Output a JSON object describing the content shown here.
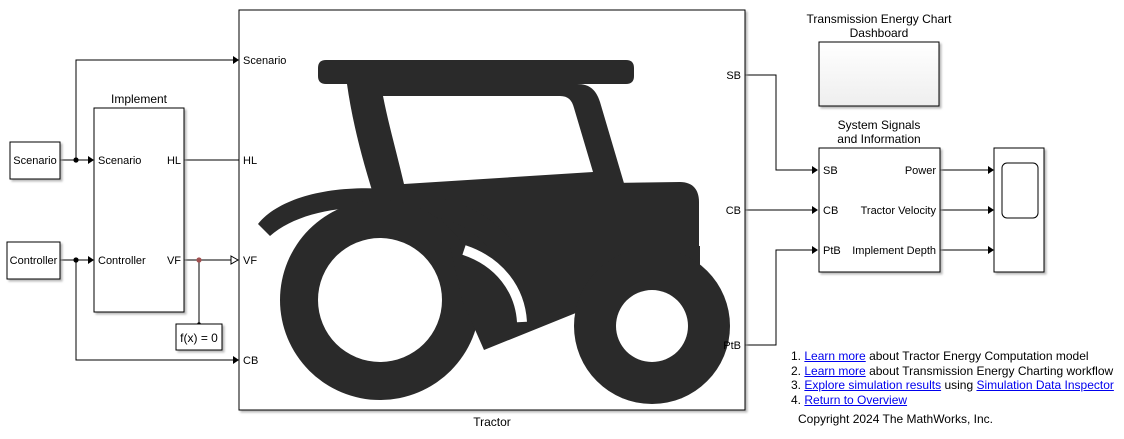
{
  "blocks": {
    "scenario_source": "Scenario",
    "controller_source": "Controller",
    "implement": {
      "title": "Implement",
      "in_scenario": "Scenario",
      "in_controller": "Controller",
      "out_hl": "HL",
      "out_vf": "VF"
    },
    "constraint": "f(x) = 0",
    "tractor": {
      "name": "Tractor",
      "in_scenario": "Scenario",
      "in_hl": "HL",
      "in_vf": "VF",
      "in_cb": "CB",
      "out_sb": "SB",
      "out_cb": "CB",
      "out_ptb": "PtB"
    },
    "dashboard": {
      "title_line1": "Transmission Energy Chart",
      "title_line2": "Dashboard"
    },
    "signals": {
      "title_line1": "System Signals",
      "title_line2": "and Information",
      "in_sb": "SB",
      "in_cb": "CB",
      "in_ptb": "PtB",
      "out_power": "Power",
      "out_velocity": "Tractor Velocity",
      "out_depth": "Implement Depth"
    }
  },
  "notes": {
    "item1": {
      "num": "1.",
      "link": "Learn more",
      "text": "about Tractor Energy Computation model"
    },
    "item2": {
      "num": "2.",
      "link": "Learn more",
      "text": "about Transmission Energy Charting workflow"
    },
    "item3": {
      "num": "3.",
      "link": "Explore simulation results",
      "mid": "using",
      "link2": "Simulation Data Inspector"
    },
    "item4": {
      "num": "4.",
      "link": "Return to Overview"
    }
  },
  "copyright": "Copyright 2024 The MathWorks, Inc.",
  "colors": {
    "tractor_icon": "#2a2a2a",
    "hl_wire": "#4a8a7a",
    "vf_wire": "#a05050"
  }
}
